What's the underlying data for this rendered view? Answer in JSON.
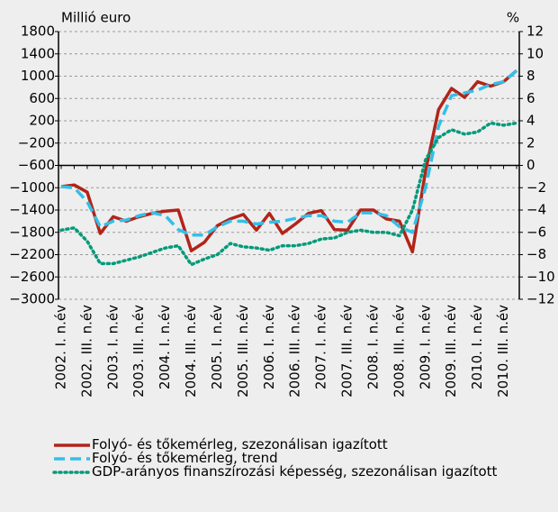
{
  "chart_data": {
    "type": "line",
    "y_label": "Millió euro",
    "y2_label": "%",
    "categories": [
      "2002. I. n.év",
      null,
      "2002. III. n.év",
      null,
      "2003. I. n.év",
      null,
      "2003. III. n.év",
      null,
      "2004. I. n.év",
      null,
      "2004. III. n.év",
      null,
      "2005. I. n.év",
      null,
      "2005. III. n.év",
      null,
      "2006. I. n.év",
      null,
      "2006. III. n.év",
      null,
      "2007. I. n.év",
      null,
      "2007. III. n.év",
      null,
      "2008. I. n.év",
      null,
      "2008. III. n.év",
      null,
      "2009. I. n.év",
      null,
      "2009. III. n.év",
      null,
      "2010. I. n.év",
      null,
      "2010. III. n.év",
      null
    ],
    "series": [
      {
        "name": "Folyó- és tőkemérleg, szezonálisan igazított",
        "color": "#b22418",
        "style": "solid",
        "values": [
          -980,
          -950,
          -1080,
          -1820,
          -1520,
          -1600,
          -1520,
          -1460,
          -1420,
          -1400,
          -2130,
          -1980,
          -1680,
          -1560,
          -1480,
          -1760,
          -1460,
          -1820,
          -1650,
          -1460,
          -1410,
          -1750,
          -1760,
          -1400,
          -1400,
          -1560,
          -1600,
          -2150,
          -700,
          400,
          780,
          620,
          900,
          820,
          900,
          1100
        ]
      },
      {
        "name": "Folyó- és tőkemérleg, trend",
        "color": "#33bfe8",
        "style": "dashed",
        "values": [
          -980,
          -1000,
          -1250,
          -1700,
          -1600,
          -1580,
          -1500,
          -1450,
          -1500,
          -1750,
          -1850,
          -1850,
          -1700,
          -1600,
          -1600,
          -1650,
          -1620,
          -1600,
          -1550,
          -1500,
          -1500,
          -1600,
          -1620,
          -1450,
          -1450,
          -1500,
          -1700,
          -1800,
          -1000,
          100,
          650,
          700,
          750,
          850,
          900,
          1100
        ]
      },
      {
        "name": "GDP-arányos finanszírozási képesség, szezonálisan igazított",
        "color": "#009a7a",
        "style": "dotted",
        "axis": "y2",
        "values": [
          -5.8,
          -5.6,
          -6.8,
          -8.8,
          -8.8,
          -8.5,
          -8.2,
          -7.8,
          -7.4,
          -7.2,
          -8.9,
          -8.4,
          -8.0,
          -7.0,
          -7.3,
          -7.4,
          -7.6,
          -7.2,
          -7.2,
          -7.0,
          -6.6,
          -6.5,
          -6.0,
          -5.8,
          -6.0,
          -6.0,
          -6.3,
          -4.0,
          0.5,
          2.5,
          3.2,
          2.8,
          3.0,
          3.8,
          3.6,
          3.8
        ]
      }
    ],
    "ylim": [
      -3000,
      1800
    ],
    "yticks": [
      1800,
      1400,
      1000,
      600,
      200,
      {
        "value": -200,
        "label": "−200"
      },
      {
        "value": -600,
        "label": "−600"
      },
      {
        "value": -1000,
        "label": "−1000"
      },
      {
        "value": -1400,
        "label": "−1400"
      },
      {
        "value": -1800,
        "label": "−1800"
      },
      {
        "value": -2200,
        "label": "−2200"
      },
      {
        "value": -2600,
        "label": "−2600"
      },
      {
        "value": -3000,
        "label": "−3000"
      }
    ],
    "y2lim": [
      -12,
      12
    ],
    "y2ticks": [
      12,
      10,
      8,
      6,
      4,
      2,
      0,
      {
        "value": -2,
        "label": "−2"
      },
      {
        "value": -4,
        "label": "−4"
      },
      {
        "value": -6,
        "label": "−6"
      },
      {
        "value": -8,
        "label": "−8"
      },
      {
        "value": -10,
        "label": "−10"
      },
      {
        "value": -12,
        "label": "−12"
      }
    ],
    "grid": true,
    "legend": "bottom"
  }
}
